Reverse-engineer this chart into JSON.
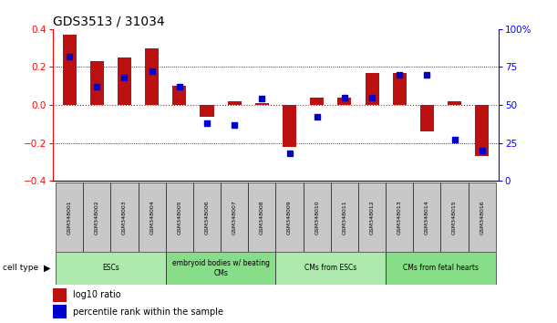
{
  "title": "GDS3513 / 31034",
  "samples": [
    "GSM348001",
    "GSM348002",
    "GSM348003",
    "GSM348004",
    "GSM348005",
    "GSM348006",
    "GSM348007",
    "GSM348008",
    "GSM348009",
    "GSM348010",
    "GSM348011",
    "GSM348012",
    "GSM348013",
    "GSM348014",
    "GSM348015",
    "GSM348016"
  ],
  "log10_ratio": [
    0.37,
    0.23,
    0.25,
    0.3,
    0.1,
    -0.06,
    0.02,
    0.01,
    -0.22,
    0.04,
    0.04,
    0.17,
    0.17,
    -0.14,
    0.02,
    -0.27
  ],
  "percentile_rank": [
    82,
    62,
    68,
    72,
    62,
    38,
    37,
    54,
    18,
    42,
    55,
    55,
    70,
    70,
    27,
    20
  ],
  "bar_color": "#BB1111",
  "dot_color": "#0000CC",
  "ylim_left": [
    -0.4,
    0.4
  ],
  "ylim_right": [
    0,
    100
  ],
  "yticks_left": [
    -0.4,
    -0.2,
    0.0,
    0.2,
    0.4
  ],
  "yticks_right": [
    0,
    25,
    50,
    75,
    100
  ],
  "ct_labels": [
    "ESCs",
    "embryoid bodies w/ beating\nCMs",
    "CMs from ESCs",
    "CMs from fetal hearts"
  ],
  "ct_borders": [
    0,
    4,
    8,
    12,
    16
  ],
  "ct_colors": [
    "#AEEAAE",
    "#88DD88",
    "#AEEAAE",
    "#88DD88"
  ],
  "legend_labels": [
    "log10 ratio",
    "percentile rank within the sample"
  ],
  "cell_type_label": "cell type",
  "background_color": "#ffffff",
  "gray_box_color": "#C8C8C8",
  "bar_width": 0.5
}
